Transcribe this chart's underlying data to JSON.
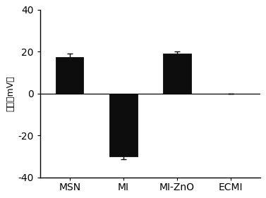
{
  "categories": [
    "MSN",
    "MI",
    "MI-ZnO",
    "ECMI"
  ],
  "values": [
    17.5,
    -30.0,
    19.0,
    0.0
  ],
  "errors": [
    1.5,
    1.2,
    1.0,
    0.0
  ],
  "bar_color": "#0d0d0d",
  "bar_width": 0.52,
  "ylim": [
    -40,
    40
  ],
  "yticks": [
    -40,
    -20,
    0,
    20,
    40
  ],
  "ylabel": "电势（mV）",
  "background_color": "#ffffff",
  "bar_edge_color": "#0d0d0d",
  "error_capsize": 3,
  "error_color": "#0d0d0d",
  "error_linewidth": 1.0,
  "xlabel_rotation": -45,
  "xlabel_ha": "left"
}
